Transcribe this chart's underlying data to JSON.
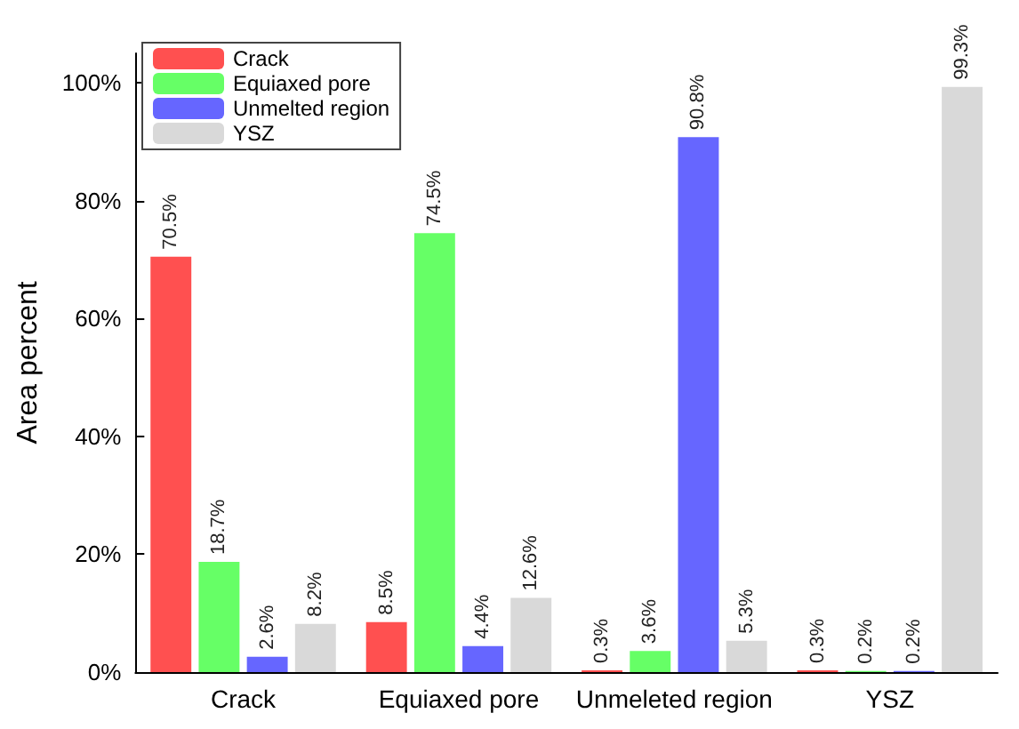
{
  "chart_data": {
    "type": "bar",
    "ylabel": "Area percent",
    "categories": [
      "Crack",
      "Equiaxed pore",
      "Unmeleted region",
      "YSZ"
    ],
    "series": [
      {
        "name": "Crack",
        "color": "#ff5050",
        "values": [
          70.5,
          8.5,
          0.3,
          0.3
        ],
        "value_labels": [
          "70.5%",
          "8.5%",
          "0.3%",
          "0.3%"
        ]
      },
      {
        "name": "Equiaxed pore",
        "color": "#66ff66",
        "values": [
          18.7,
          74.5,
          3.6,
          0.2
        ],
        "value_labels": [
          "18.7%",
          "74.5%",
          "3.6%",
          "0.2%"
        ]
      },
      {
        "name": "Unmelted region",
        "color": "#6666ff",
        "values": [
          2.6,
          4.4,
          90.8,
          0.2
        ],
        "value_labels": [
          "2.6%",
          "4.4%",
          "90.8%",
          "0.2%"
        ]
      },
      {
        "name": "YSZ",
        "color": "#d9d9d9",
        "values": [
          8.2,
          12.6,
          5.3,
          99.3
        ],
        "value_labels": [
          "8.2%",
          "12.6%",
          "5.3%",
          "99.3%"
        ]
      }
    ],
    "ylim": [
      0,
      105
    ],
    "yticks": [
      {
        "value": 0,
        "label": "0%"
      },
      {
        "value": 20,
        "label": "20%"
      },
      {
        "value": 40,
        "label": "40%"
      },
      {
        "value": 60,
        "label": "60%"
      },
      {
        "value": 80,
        "label": "80%"
      },
      {
        "value": 100,
        "label": "100%"
      }
    ],
    "grid": false,
    "legend": "top left"
  }
}
